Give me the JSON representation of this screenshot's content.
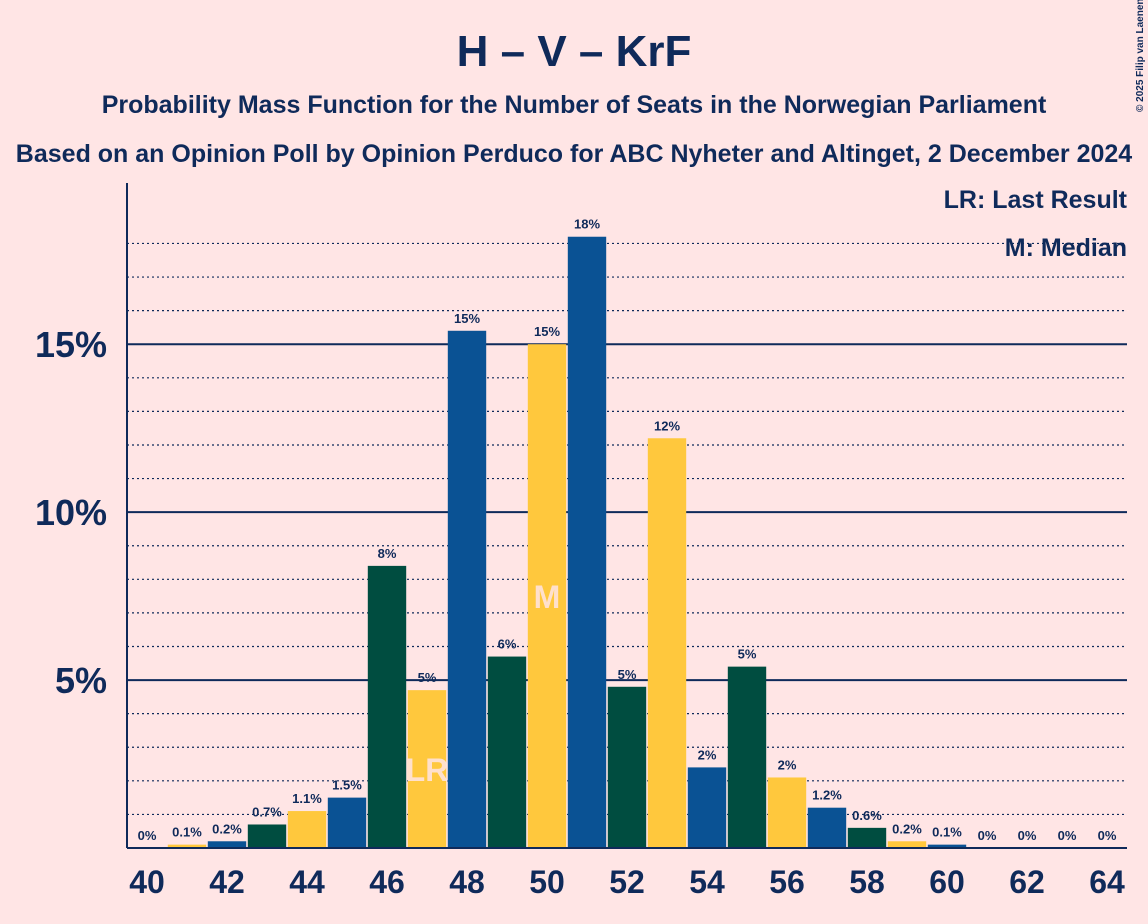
{
  "chart_data": {
    "type": "bar",
    "title": "H – V – KrF",
    "subtitle": "Probability Mass Function for the Number of Seats in the Norwegian Parliament",
    "subtitle2": "Based on an Opinion Poll by Opinion Perduco for ABC Nyheter and Altinget, 2 December 2024",
    "copyright": "© 2025 Filip van Laenen",
    "legend": [
      "LR: Last Result",
      "M: Median"
    ],
    "x": [
      40,
      41,
      42,
      43,
      44,
      45,
      46,
      47,
      48,
      49,
      50,
      51,
      52,
      53,
      54,
      55,
      56,
      57,
      58,
      59,
      60,
      61,
      62,
      63,
      64
    ],
    "values": [
      0,
      0.1,
      0.2,
      0.7,
      1.1,
      1.5,
      8.4,
      4.7,
      15.4,
      5.7,
      15.0,
      18.2,
      4.8,
      12.2,
      2.4,
      5.4,
      2.1,
      1.2,
      0.6,
      0.2,
      0.1,
      0,
      0,
      0,
      0
    ],
    "value_labels": [
      "0%",
      "0.1%",
      "0.2%",
      "0.7%",
      "1.1%",
      "1.5%",
      "8%",
      "5%",
      "15%",
      "6%",
      "15%",
      "18%",
      "5%",
      "12%",
      "2%",
      "5%",
      "2%",
      "1.2%",
      "0.6%",
      "0.2%",
      "0.1%",
      "0%",
      "0%",
      "0%",
      "0%"
    ],
    "colors": [
      "#004d40",
      "#ffc83d",
      "#0a5294",
      "#004d40",
      "#ffc83d",
      "#0a5294",
      "#004d40",
      "#ffc83d",
      "#0a5294",
      "#004d40",
      "#ffc83d",
      "#0a5294",
      "#004d40",
      "#ffc83d",
      "#0a5294",
      "#004d40",
      "#ffc83d",
      "#0a5294",
      "#004d40",
      "#ffc83d",
      "#0a5294",
      "#004d40",
      "#ffc83d",
      "#0a5294",
      "#004d40"
    ],
    "markers": [
      {
        "label": "LR",
        "x": 47
      },
      {
        "label": "M",
        "x": 50
      }
    ],
    "xlim": [
      39.5,
      64.5
    ],
    "xticks": [
      40,
      42,
      44,
      46,
      48,
      50,
      52,
      54,
      56,
      58,
      60,
      62,
      64
    ],
    "ylim": [
      0,
      19.8
    ],
    "yticks": [
      {
        "value": 5,
        "label": "5%"
      },
      {
        "value": 10,
        "label": "10%"
      },
      {
        "value": 15,
        "label": "15%"
      }
    ],
    "minor_yticks": [
      1,
      2,
      3,
      4,
      6,
      7,
      8,
      9,
      11,
      12,
      13,
      14,
      16,
      17,
      18
    ],
    "grid": true
  }
}
